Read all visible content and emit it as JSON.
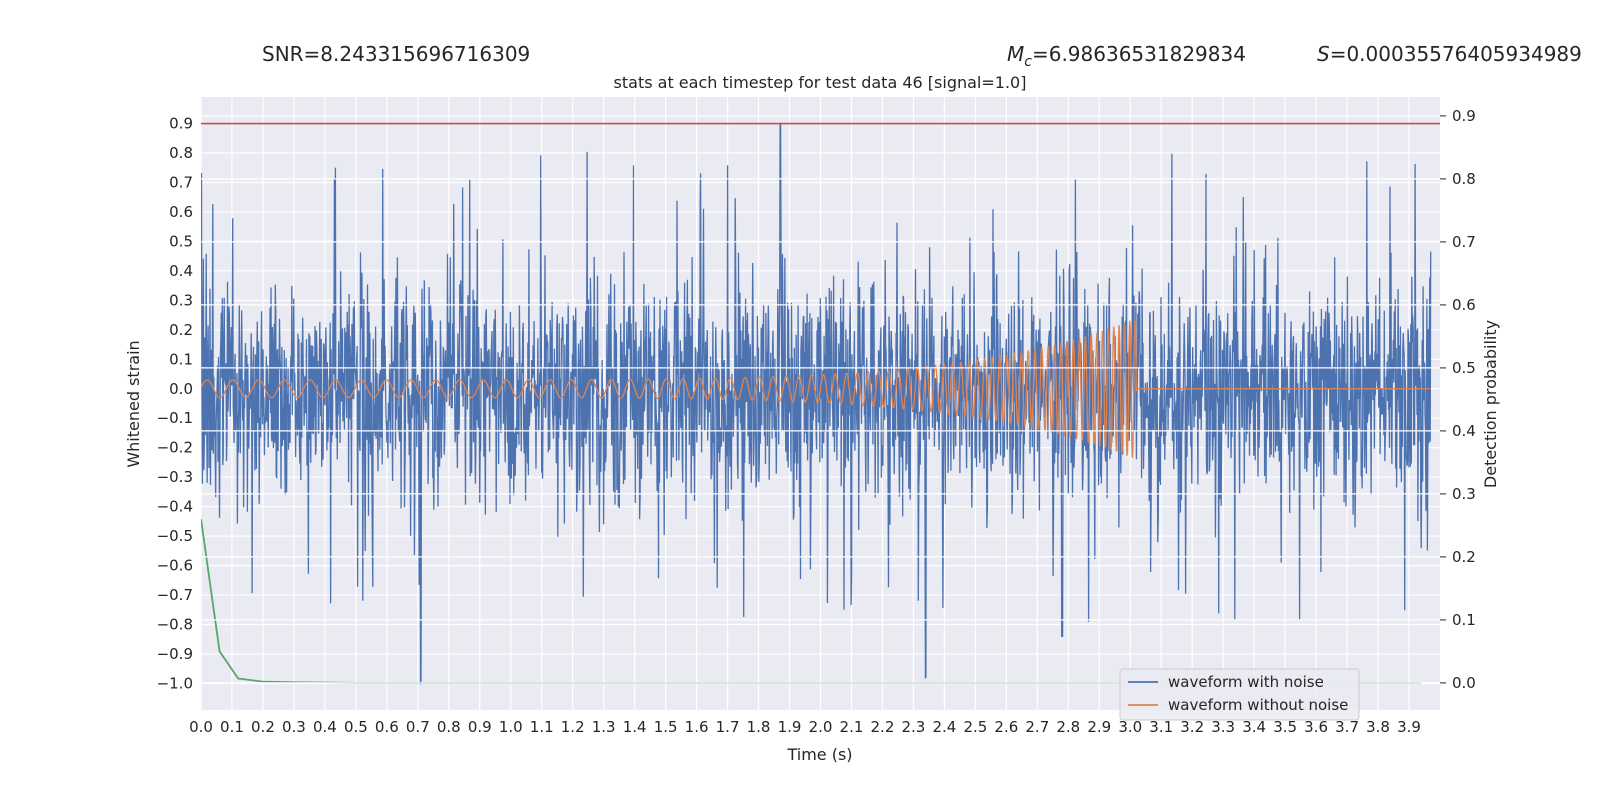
{
  "header": {
    "snr": "SNR=8.243315696716309",
    "mc_symbol": "M",
    "mc_sub": "c",
    "mc_value": "=6.98636531829834",
    "s_symbol": "S",
    "s_value": "=0.00035576405934989"
  },
  "chart_data": {
    "type": "line",
    "title": "stats at each timestep for test data 46 [signal=1.0]",
    "xlabel": "Time (s)",
    "ylabel_left": "Whitened strain",
    "ylabel_right": "Detection probability",
    "xlim": [
      0.0,
      4.0
    ],
    "ylim_left": [
      -1.09,
      0.99
    ],
    "ylim_right": [
      -0.043,
      0.93
    ],
    "x_ticks": [
      "0.0",
      "0.1",
      "0.2",
      "0.3",
      "0.4",
      "0.5",
      "0.6",
      "0.7",
      "0.8",
      "0.9",
      "1.0",
      "1.1",
      "1.2",
      "1.3",
      "1.4",
      "1.5",
      "1.6",
      "1.7",
      "1.8",
      "1.9",
      "2.0",
      "2.1",
      "2.2",
      "2.3",
      "2.4",
      "2.5",
      "2.6",
      "2.7",
      "2.8",
      "2.9",
      "3.0",
      "3.1",
      "3.2",
      "3.3",
      "3.4",
      "3.5",
      "3.6",
      "3.7",
      "3.8",
      "3.9"
    ],
    "y_ticks_left": [
      "0.9",
      "0.8",
      "0.7",
      "0.6",
      "0.5",
      "0.4",
      "0.3",
      "0.2",
      "0.1",
      "0.0",
      "−0.1",
      "−0.2",
      "−0.3",
      "−0.4",
      "−0.5",
      "−0.6",
      "−0.7",
      "−0.8",
      "−0.9",
      "−1.0"
    ],
    "y_ticks_right": [
      "0.9",
      "0.8",
      "0.7",
      "0.6",
      "0.5",
      "0.4",
      "0.3",
      "0.2",
      "0.1",
      "0.0"
    ],
    "threshold": {
      "axis": "left",
      "value": 0.9,
      "color": "#c44e52"
    },
    "grid": true,
    "legend_placement": "bottom-right",
    "series": [
      {
        "name": "waveform with noise",
        "axis": "left",
        "color": "#4c72b0",
        "description_values": {
          "min": -1.0,
          "max": 0.9,
          "noise_amplitude": 0.4
        },
        "notable_points": [
          {
            "x": 0.71,
            "y": -1.0
          },
          {
            "x": 1.87,
            "y": 0.9
          },
          {
            "x": 2.34,
            "y": -0.98
          },
          {
            "x": 2.78,
            "y": -0.84
          },
          {
            "x": 0.0,
            "y": 0.73
          }
        ]
      },
      {
        "name": "waveform without noise",
        "axis": "left",
        "color": "#dd8452",
        "chirp": {
          "start_amplitude": 0.03,
          "end_amplitude": 0.24,
          "merger_time": 3.02,
          "start_cycles_per_s": 12,
          "end_cycles_per_s": 60
        }
      },
      {
        "name": "detection probability",
        "axis": "right",
        "color": "#55a868",
        "x": [
          0.0,
          0.06,
          0.12,
          0.2,
          0.3,
          0.5,
          1.0,
          2.0,
          3.0,
          3.94
        ],
        "y": [
          0.26,
          0.05,
          0.007,
          0.002,
          0.001,
          0.0,
          0.0,
          0.0,
          0.0,
          0.0
        ]
      }
    ]
  },
  "colors": {
    "axes_bg": "#eaeaf2",
    "grid": "#ffffff",
    "text": "#262626"
  }
}
